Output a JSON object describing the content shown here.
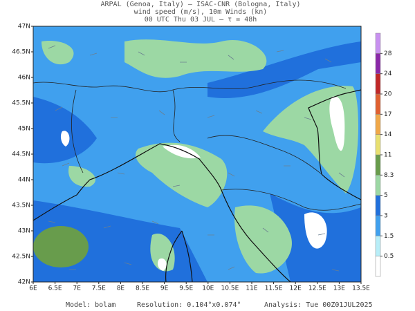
{
  "header": {
    "line1": "ARPAL (Genoa, Italy)  —  ISAC-CNR (Bologna, Italy)",
    "line2": "wind speed (m/s), 10m Winds (kn)",
    "line3": "00 UTC Thu 03 JUL  —  τ = 48h"
  },
  "map": {
    "yticks": [
      {
        "value": 47,
        "label": "47N"
      },
      {
        "value": 46.5,
        "label": "46.5N"
      },
      {
        "value": 46,
        "label": "46N"
      },
      {
        "value": 45.5,
        "label": "45.5N"
      },
      {
        "value": 45,
        "label": "45N"
      },
      {
        "value": 44.5,
        "label": "44.5N"
      },
      {
        "value": 44,
        "label": "44N"
      },
      {
        "value": 43.5,
        "label": "43.5N"
      },
      {
        "value": 43,
        "label": "43N"
      },
      {
        "value": 42.5,
        "label": "42.5N"
      },
      {
        "value": 42,
        "label": "42N"
      }
    ],
    "xticks": [
      {
        "value": 6,
        "label": "6E"
      },
      {
        "value": 6.5,
        "label": "6.5E"
      },
      {
        "value": 7,
        "label": "7E"
      },
      {
        "value": 7.5,
        "label": "7.5E"
      },
      {
        "value": 8,
        "label": "8E"
      },
      {
        "value": 8.5,
        "label": "8.5E"
      },
      {
        "value": 9,
        "label": "9E"
      },
      {
        "value": 9.5,
        "label": "9.5E"
      },
      {
        "value": 10,
        "label": "10E"
      },
      {
        "value": 10.5,
        "label": "10.5E"
      },
      {
        "value": 11,
        "label": "11E"
      },
      {
        "value": 11.5,
        "label": "11.5E"
      },
      {
        "value": 12,
        "label": "12E"
      },
      {
        "value": 12.5,
        "label": "12.5E"
      },
      {
        "value": 13,
        "label": "13E"
      },
      {
        "value": 13.5,
        "label": "13.5E"
      }
    ],
    "xlim": [
      6,
      13.5
    ],
    "ylim": [
      42,
      47
    ]
  },
  "colorbar": {
    "ticks": [
      0.5,
      1.5,
      3,
      5,
      8.3,
      11,
      14,
      17,
      20,
      24,
      28
    ],
    "colors": [
      "#ffffff",
      "#b8eef8",
      "#40a0ee",
      "#2070dc",
      "#9cd8a4",
      "#689c4c",
      "#e8e070",
      "#f0a848",
      "#e06030",
      "#c02828",
      "#8a28a8",
      "#c890f0"
    ]
  },
  "footer": {
    "model": "Model: bolam",
    "resolution": "Resolution: 0.104°x0.074°",
    "analysis": "Analysis: Tue 00Z01JUL2025"
  }
}
